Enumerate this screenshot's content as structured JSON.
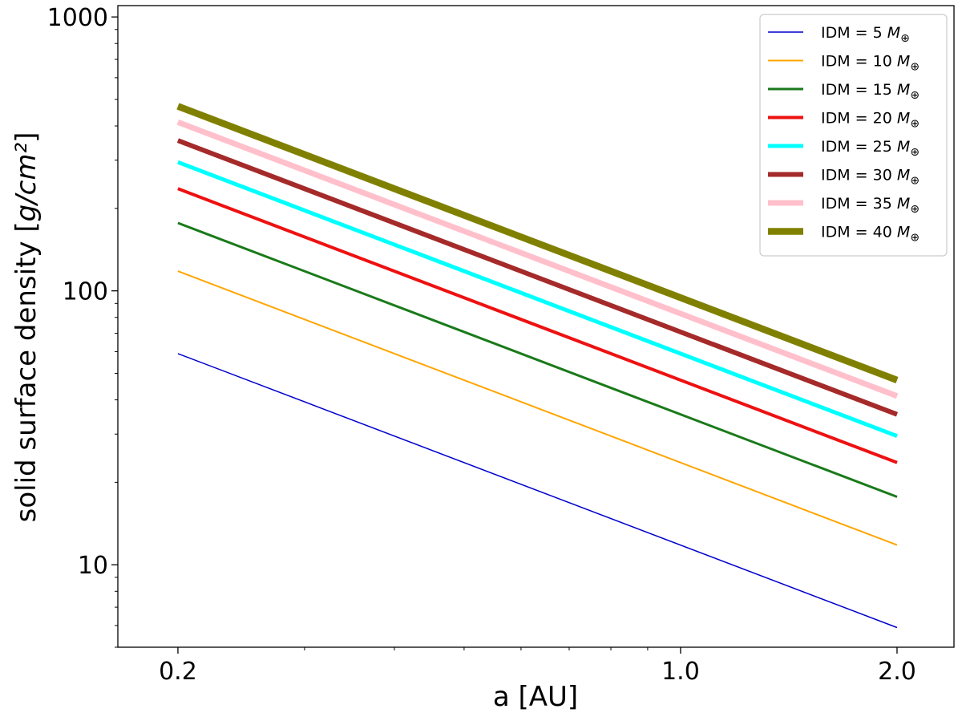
{
  "chart_data": {
    "type": "line",
    "x_scale": "log",
    "y_scale": "log",
    "xlabel": "a [AU]",
    "ylabel_prefix": "solid surface density [",
    "ylabel_units": "g/cm²",
    "ylabel_suffix": "]",
    "xlim": [
      0.165,
      2.4
    ],
    "ylim": [
      5.0,
      1100
    ],
    "x_ticks": [
      {
        "value": 0.2,
        "label": "0.2"
      },
      {
        "value": 1.0,
        "label": "1.0"
      },
      {
        "value": 2.0,
        "label": "2.0"
      }
    ],
    "y_ticks": [
      {
        "value": 10,
        "label": "10"
      },
      {
        "value": 100,
        "label": "100"
      },
      {
        "value": 1000,
        "label": "1000"
      }
    ],
    "legend_position": "top-right",
    "series": [
      {
        "name": "IDM = 5",
        "unit": "M",
        "unit_sub": "⊕",
        "color": "#0000cd",
        "weight": 1.5,
        "x": [
          0.2,
          2.0
        ],
        "y": [
          59,
          5.9
        ]
      },
      {
        "name": "IDM = 10",
        "unit": "M",
        "unit_sub": "⊕",
        "color": "#ffa500",
        "weight": 2.0,
        "x": [
          0.2,
          2.0
        ],
        "y": [
          118,
          11.8
        ]
      },
      {
        "name": "IDM = 15",
        "unit": "M",
        "unit_sub": "⊕",
        "color": "#1a7a1a",
        "weight": 3.0,
        "x": [
          0.2,
          2.0
        ],
        "y": [
          177,
          17.7
        ]
      },
      {
        "name": "IDM = 20",
        "unit": "M",
        "unit_sub": "⊕",
        "color": "#ee1111",
        "weight": 4.0,
        "x": [
          0.2,
          2.0
        ],
        "y": [
          236,
          23.6
        ]
      },
      {
        "name": "IDM = 25",
        "unit": "M",
        "unit_sub": "⊕",
        "color": "#00ffff",
        "weight": 5.0,
        "x": [
          0.2,
          2.0
        ],
        "y": [
          295,
          29.5
        ]
      },
      {
        "name": "IDM = 30",
        "unit": "M",
        "unit_sub": "⊕",
        "color": "#a52a2a",
        "weight": 6.0,
        "x": [
          0.2,
          2.0
        ],
        "y": [
          354,
          35.4
        ]
      },
      {
        "name": "IDM = 35",
        "unit": "M",
        "unit_sub": "⊕",
        "color": "#ffc0cb",
        "weight": 7.0,
        "x": [
          0.2,
          2.0
        ],
        "y": [
          413,
          41.3
        ]
      },
      {
        "name": "IDM = 40",
        "unit": "M",
        "unit_sub": "⊕",
        "color": "#808000",
        "weight": 8.5,
        "x": [
          0.2,
          2.0
        ],
        "y": [
          472,
          47.2
        ]
      }
    ]
  }
}
